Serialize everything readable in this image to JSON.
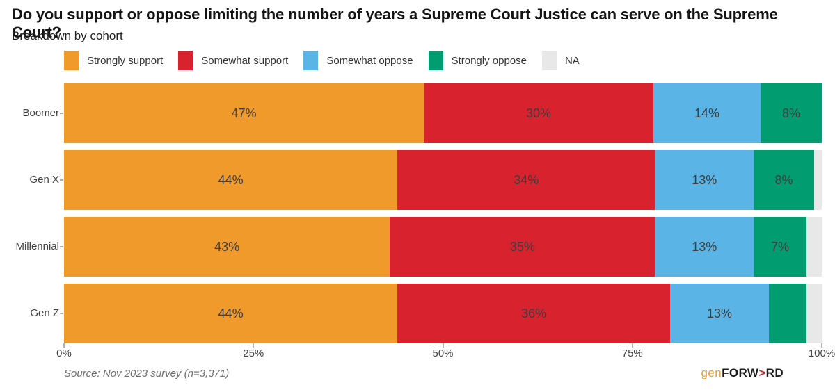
{
  "header": {
    "title": "Do you support or oppose limiting the number of years a Supreme Court Justice can serve on the Supreme Court?",
    "subtitle": "Breakdown by cohort"
  },
  "legend": [
    {
      "label": "Strongly support",
      "color": "#EF9A2B"
    },
    {
      "label": "Somewhat support",
      "color": "#D8232F"
    },
    {
      "label": "Somewhat oppose",
      "color": "#5AB4E5"
    },
    {
      "label": "Strongly oppose",
      "color": "#019D70"
    },
    {
      "label": "NA",
      "color": "#E8E8E8"
    }
  ],
  "chart_data": {
    "type": "bar",
    "orientation": "horizontal",
    "stacked": true,
    "title": "Do you support or oppose limiting the number of years a Supreme Court Justice can serve on the Supreme Court?",
    "subtitle": "Breakdown by cohort",
    "categories": [
      "Boomer",
      "Gen X",
      "Millennial",
      "Gen Z"
    ],
    "series": [
      {
        "name": "Strongly support",
        "color": "#EF9A2B",
        "values": [
          47,
          44,
          43,
          44
        ]
      },
      {
        "name": "Somewhat support",
        "color": "#D8232F",
        "values": [
          30,
          34,
          35,
          36
        ]
      },
      {
        "name": "Somewhat oppose",
        "color": "#5AB4E5",
        "values": [
          14,
          13,
          13,
          13
        ]
      },
      {
        "name": "Strongly oppose",
        "color": "#019D70",
        "values": [
          8,
          8,
          7,
          5
        ]
      },
      {
        "name": "NA",
        "color": "#E8E8E8",
        "values": [
          0,
          1,
          2,
          2
        ]
      }
    ],
    "bar_labels": [
      [
        "47%",
        "30%",
        "14%",
        "8%",
        ""
      ],
      [
        "44%",
        "34%",
        "13%",
        "8%",
        ""
      ],
      [
        "43%",
        "35%",
        "13%",
        "7%",
        ""
      ],
      [
        "44%",
        "36%",
        "13%",
        "",
        ""
      ]
    ],
    "x_ticks": [
      {
        "label": "0%",
        "value": 0
      },
      {
        "label": "25%",
        "value": 25
      },
      {
        "label": "50%",
        "value": 50
      },
      {
        "label": "75%",
        "value": 75
      },
      {
        "label": "100%",
        "value": 100
      }
    ],
    "xlim": [
      0,
      100
    ],
    "xlabel": "",
    "ylabel": "",
    "legend_position": "top",
    "grid": false
  },
  "footer": {
    "source": "Source: Nov 2023 survey (n=3,371)",
    "logo": {
      "gen": "gen",
      "forw": "FORW",
      "arrow": ">",
      "rd": "RD"
    }
  }
}
